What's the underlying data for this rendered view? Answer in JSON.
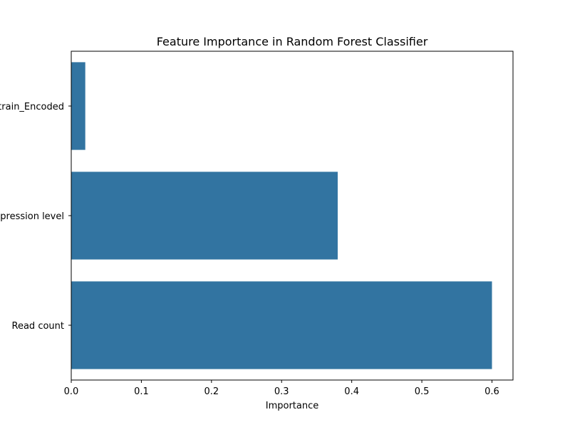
{
  "chart_data": {
    "type": "bar",
    "orientation": "horizontal",
    "title": "Feature Importance in Random Forest Classifier",
    "xlabel": "Importance",
    "ylabel": "",
    "categories": [
      "Strain_Encoded",
      "Expression level",
      "Read count"
    ],
    "values": [
      0.02,
      0.38,
      0.6
    ],
    "xlim": [
      0,
      0.63
    ],
    "xticks": [
      0.0,
      0.1,
      0.2,
      0.3,
      0.4,
      0.5,
      0.6
    ],
    "xtick_labels": [
      "0.0",
      "0.1",
      "0.2",
      "0.3",
      "0.4",
      "0.5",
      "0.6"
    ],
    "grid": false,
    "legend": "none",
    "bar_color": "#3274a1"
  }
}
